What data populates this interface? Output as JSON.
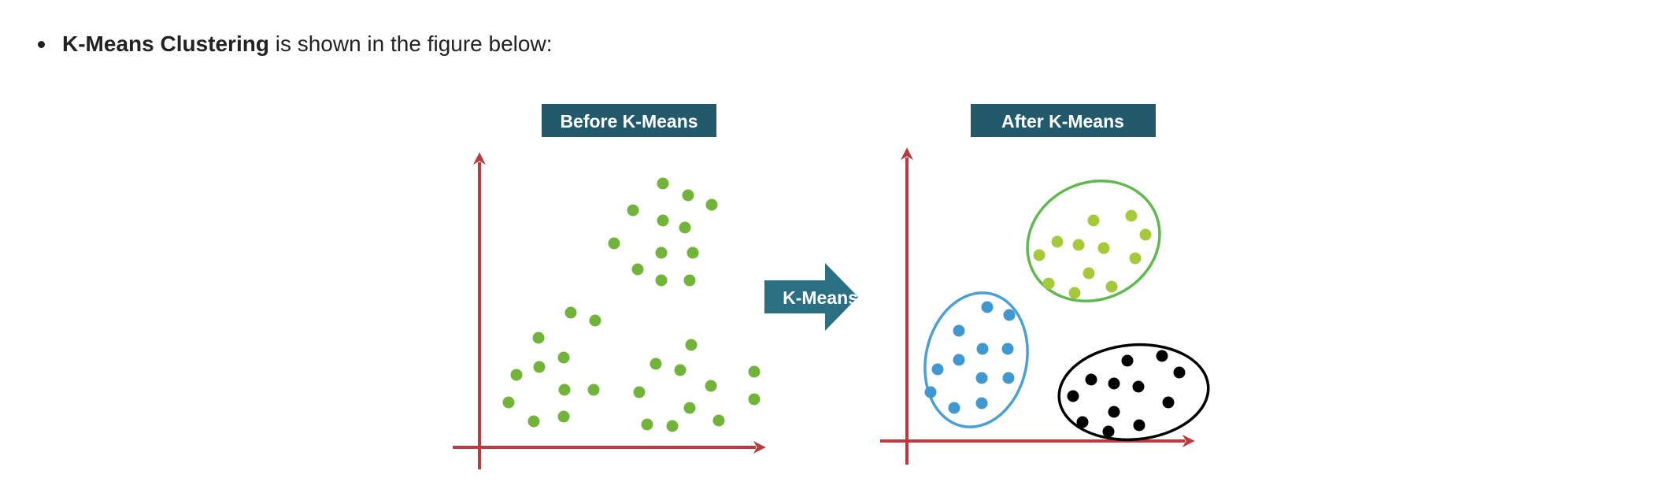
{
  "intro": {
    "bold_text": "K-Means Clustering",
    "rest_text": " is shown in the figure below:"
  },
  "figure": {
    "before_title": "Before K-Means",
    "after_title": "After K-Means",
    "arrow_label": "K-Means",
    "colors": {
      "title_bg": "#235a6b",
      "arrow": "#2b6f82",
      "axis": "#b83b3f",
      "before_points": "#72b43a",
      "cluster_green_points": "#a6c93a",
      "cluster_green_outline": "#5fb94e",
      "cluster_blue_points": "#3f98cf",
      "cluster_blue_outline": "#4aa0d4",
      "cluster_black_points": "#000000",
      "cluster_black_outline": "#000000"
    }
  }
}
